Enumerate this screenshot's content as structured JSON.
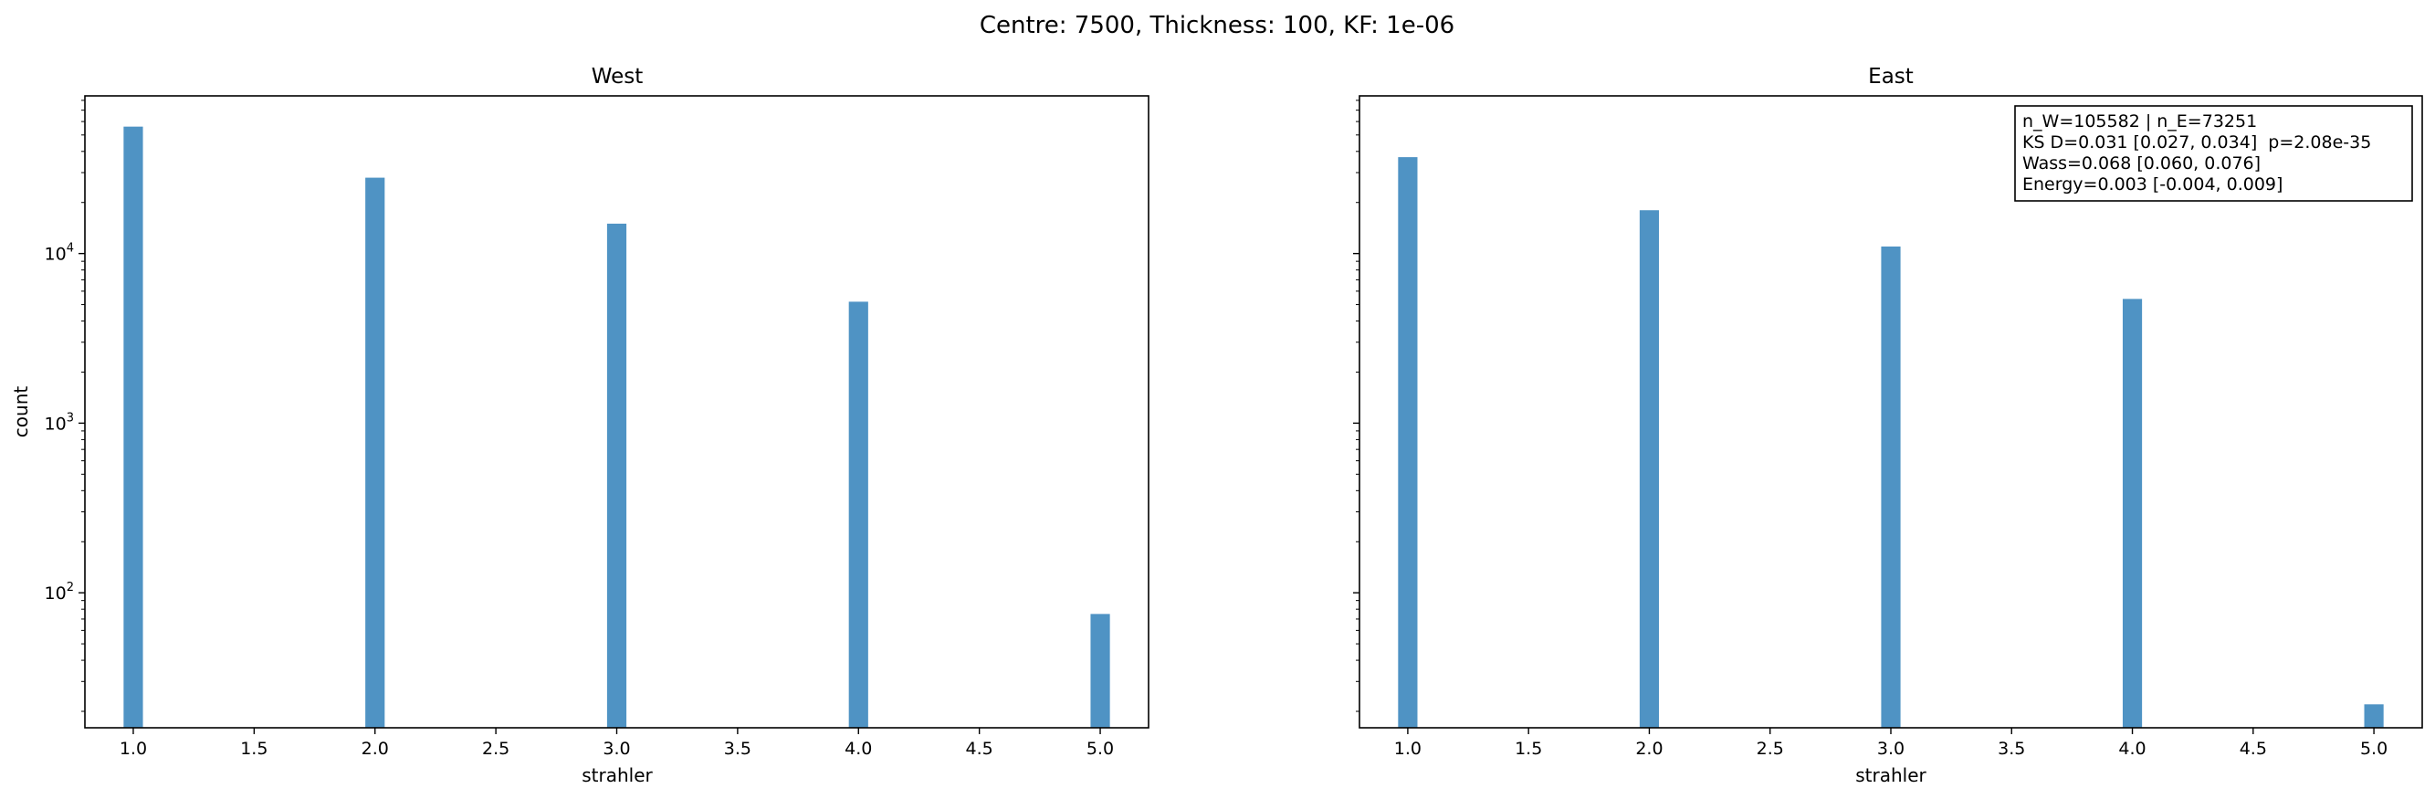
{
  "suptitle": "Centre: 7500, Thickness: 100, KF: 1e-06",
  "colors": {
    "bar": "#4f93c4",
    "axis": "#000000",
    "text": "#000000"
  },
  "chart_data": [
    {
      "type": "bar",
      "title": "West",
      "xlabel": "strahler",
      "ylabel": "count",
      "yscale": "log",
      "xlim": [
        0.8,
        5.2
      ],
      "ylim": [
        16,
        85000
      ],
      "xticks": [
        "1.0",
        "1.5",
        "2.0",
        "2.5",
        "3.0",
        "3.5",
        "4.0",
        "4.5",
        "5.0"
      ],
      "yticks": [
        {
          "base": "10",
          "exp": "2",
          "value": 100
        },
        {
          "base": "10",
          "exp": "3",
          "value": 1000
        },
        {
          "base": "10",
          "exp": "4",
          "value": 10000
        }
      ],
      "x": [
        1,
        2,
        3,
        4,
        5
      ],
      "values": [
        56000,
        28000,
        15000,
        5200,
        75
      ],
      "grid": false
    },
    {
      "type": "bar",
      "title": "East",
      "xlabel": "strahler",
      "ylabel": "",
      "yscale": "log",
      "xlim": [
        0.8,
        5.2
      ],
      "ylim": [
        16,
        85000
      ],
      "xticks": [
        "1.0",
        "1.5",
        "2.0",
        "2.5",
        "3.0",
        "3.5",
        "4.0",
        "4.5",
        "5.0"
      ],
      "yticks": [],
      "x": [
        1,
        2,
        3,
        4,
        5
      ],
      "values": [
        37000,
        18000,
        11000,
        5400,
        22
      ],
      "grid": false,
      "annotation": [
        "n_W=105582 | n_E=73251",
        "KS D=0.031 [0.027, 0.034]  p=2.08e-35",
        "Wass=0.068 [0.060, 0.076]",
        "Energy=0.003 [-0.004, 0.009]"
      ]
    }
  ]
}
